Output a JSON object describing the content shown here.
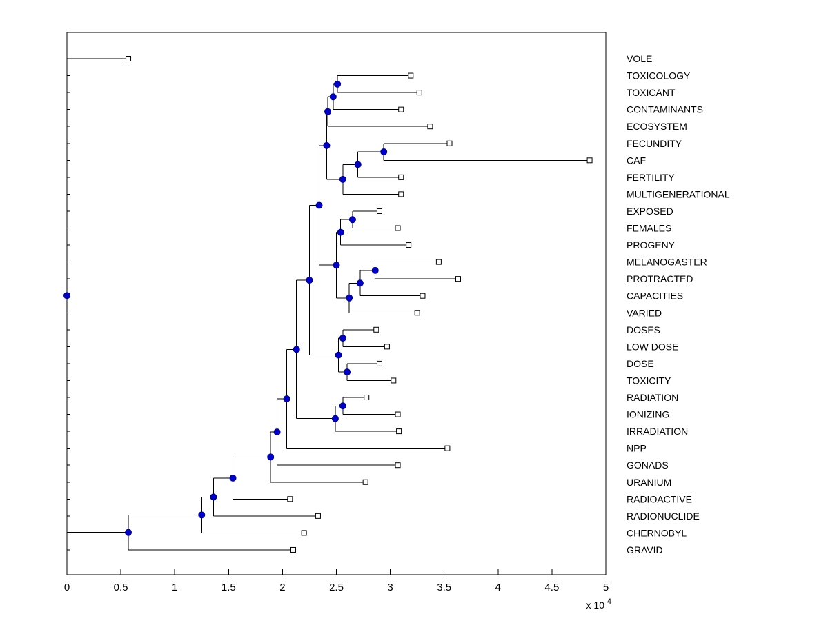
{
  "chart_data": {
    "type": "dendrogram",
    "orientation": "horizontal",
    "title": "",
    "x_axis": {
      "min": 0,
      "max": 5,
      "tick_values": [
        0,
        0.5,
        1,
        1.5,
        2,
        2.5,
        3,
        3.5,
        4,
        4.5,
        5
      ],
      "tick_labels": [
        "0",
        "0.5",
        "1",
        "1.5",
        "2",
        "2.5",
        "3",
        "3.5",
        "4",
        "4.5",
        "5"
      ],
      "exponent_prefix": "x 10",
      "exponent": "4"
    },
    "colors": {
      "branch": "#000000",
      "axis": "#000000",
      "leaf_marker_fill": "#ffffff",
      "leaf_marker_stroke": "#000000",
      "node_marker_fill": "#0000cd",
      "node_marker_stroke": "#00008b",
      "label": "#000000"
    },
    "leaves": [
      {
        "label": "VOLE",
        "tip": 0.57
      },
      {
        "label": "TOXICOLOGY",
        "tip": 3.19
      },
      {
        "label": "TOXICANT",
        "tip": 3.27
      },
      {
        "label": "CONTAMINANTS",
        "tip": 3.1
      },
      {
        "label": "ECOSYSTEM",
        "tip": 3.37
      },
      {
        "label": "FECUNDITY",
        "tip": 3.55
      },
      {
        "label": "CAF",
        "tip": 4.85
      },
      {
        "label": "FERTILITY",
        "tip": 3.1
      },
      {
        "label": "MULTIGENERATIONAL",
        "tip": 3.1
      },
      {
        "label": "EXPOSED",
        "tip": 2.9
      },
      {
        "label": "FEMALES",
        "tip": 3.07
      },
      {
        "label": "PROGENY",
        "tip": 3.17
      },
      {
        "label": "MELANOGASTER",
        "tip": 3.45
      },
      {
        "label": "PROTRACTED",
        "tip": 3.63
      },
      {
        "label": "CAPACITIES",
        "tip": 3.3
      },
      {
        "label": "VARIED",
        "tip": 3.25
      },
      {
        "label": "DOSES",
        "tip": 2.87
      },
      {
        "label": "LOW DOSE",
        "tip": 2.97
      },
      {
        "label": "DOSE",
        "tip": 2.9
      },
      {
        "label": "TOXICITY",
        "tip": 3.03
      },
      {
        "label": "RADIATION",
        "tip": 2.78
      },
      {
        "label": "IONIZING",
        "tip": 3.07
      },
      {
        "label": "IRRADIATION",
        "tip": 3.08
      },
      {
        "label": "NPP",
        "tip": 3.53
      },
      {
        "label": "GONADS",
        "tip": 3.07
      },
      {
        "label": "URANIUM",
        "tip": 2.77
      },
      {
        "label": "RADIOACTIVE",
        "tip": 2.07
      },
      {
        "label": "RADIONUCLIDE",
        "tip": 2.33
      },
      {
        "label": "CHERNOBYL",
        "tip": 2.2
      },
      {
        "label": "GRAVID",
        "tip": 2.1
      }
    ],
    "tree": {
      "x": 0,
      "c": [
        {
          "leaf": 0
        },
        {
          "x": 0.57,
          "c": [
            {
              "x": 1.25,
              "c": [
                {
                  "x": 1.36,
                  "c": [
                    {
                      "x": 1.54,
                      "c": [
                        {
                          "x": 1.89,
                          "c": [
                            {
                              "x": 1.95,
                              "c": [
                                {
                                  "x": 2.04,
                                  "c": [
                                    {
                                      "x": 2.13,
                                      "c": [
                                        {
                                          "x": 2.25,
                                          "c": [
                                            {
                                              "x": 2.34,
                                              "c": [
                                                {
                                                  "x": 2.41,
                                                  "c": [
                                                    {
                                                      "x": 2.42,
                                                      "c": [
                                                        {
                                                          "x": 2.47,
                                                          "c": [
                                                            {
                                                              "x": 2.51,
                                                              "c": [
                                                                {
                                                                  "leaf": 1
                                                                },
                                                                {
                                                                  "leaf": 2
                                                                }
                                                              ]
                                                            },
                                                            {
                                                              "leaf": 3
                                                            }
                                                          ]
                                                        },
                                                        {
                                                          "leaf": 4
                                                        }
                                                      ]
                                                    },
                                                    {
                                                      "x": 2.56,
                                                      "c": [
                                                        {
                                                          "x": 2.7,
                                                          "c": [
                                                            {
                                                              "x": 2.94,
                                                              "c": [
                                                                {
                                                                  "leaf": 5
                                                                },
                                                                {
                                                                  "leaf": 6
                                                                }
                                                              ]
                                                            },
                                                            {
                                                              "leaf": 7
                                                            }
                                                          ]
                                                        },
                                                        {
                                                          "leaf": 8
                                                        }
                                                      ]
                                                    }
                                                  ]
                                                },
                                                {
                                                  "x": 2.5,
                                                  "c": [
                                                    {
                                                      "x": 2.54,
                                                      "c": [
                                                        {
                                                          "x": 2.65,
                                                          "c": [
                                                            {
                                                              "leaf": 9
                                                            },
                                                            {
                                                              "leaf": 10
                                                            }
                                                          ]
                                                        },
                                                        {
                                                          "leaf": 11
                                                        }
                                                      ]
                                                    },
                                                    {
                                                      "x": 2.62,
                                                      "c": [
                                                        {
                                                          "x": 2.72,
                                                          "c": [
                                                            {
                                                              "x": 2.86,
                                                              "c": [
                                                                {
                                                                  "leaf": 12
                                                                },
                                                                {
                                                                  "leaf": 13
                                                                }
                                                              ]
                                                            },
                                                            {
                                                              "leaf": 14
                                                            }
                                                          ]
                                                        },
                                                        {
                                                          "leaf": 15
                                                        }
                                                      ]
                                                    }
                                                  ]
                                                }
                                              ]
                                            },
                                            {
                                              "x": 2.52,
                                              "c": [
                                                {
                                                  "x": 2.56,
                                                  "c": [
                                                    {
                                                      "leaf": 16
                                                    },
                                                    {
                                                      "leaf": 17
                                                    }
                                                  ]
                                                },
                                                {
                                                  "x": 2.6,
                                                  "c": [
                                                    {
                                                      "leaf": 18
                                                    },
                                                    {
                                                      "leaf": 19
                                                    }
                                                  ]
                                                }
                                              ]
                                            }
                                          ]
                                        },
                                        {
                                          "x": 2.49,
                                          "c": [
                                            {
                                              "x": 2.56,
                                              "c": [
                                                {
                                                  "leaf": 20
                                                },
                                                {
                                                  "leaf": 21
                                                }
                                              ]
                                            },
                                            {
                                              "leaf": 22
                                            }
                                          ]
                                        }
                                      ]
                                    },
                                    {
                                      "leaf": 23
                                    }
                                  ]
                                },
                                {
                                  "leaf": 24
                                }
                              ]
                            },
                            {
                              "leaf": 25
                            }
                          ]
                        },
                        {
                          "leaf": 26
                        }
                      ]
                    },
                    {
                      "leaf": 27
                    }
                  ]
                },
                {
                  "leaf": 28
                }
              ]
            },
            {
              "leaf": 29
            }
          ]
        }
      ]
    }
  }
}
